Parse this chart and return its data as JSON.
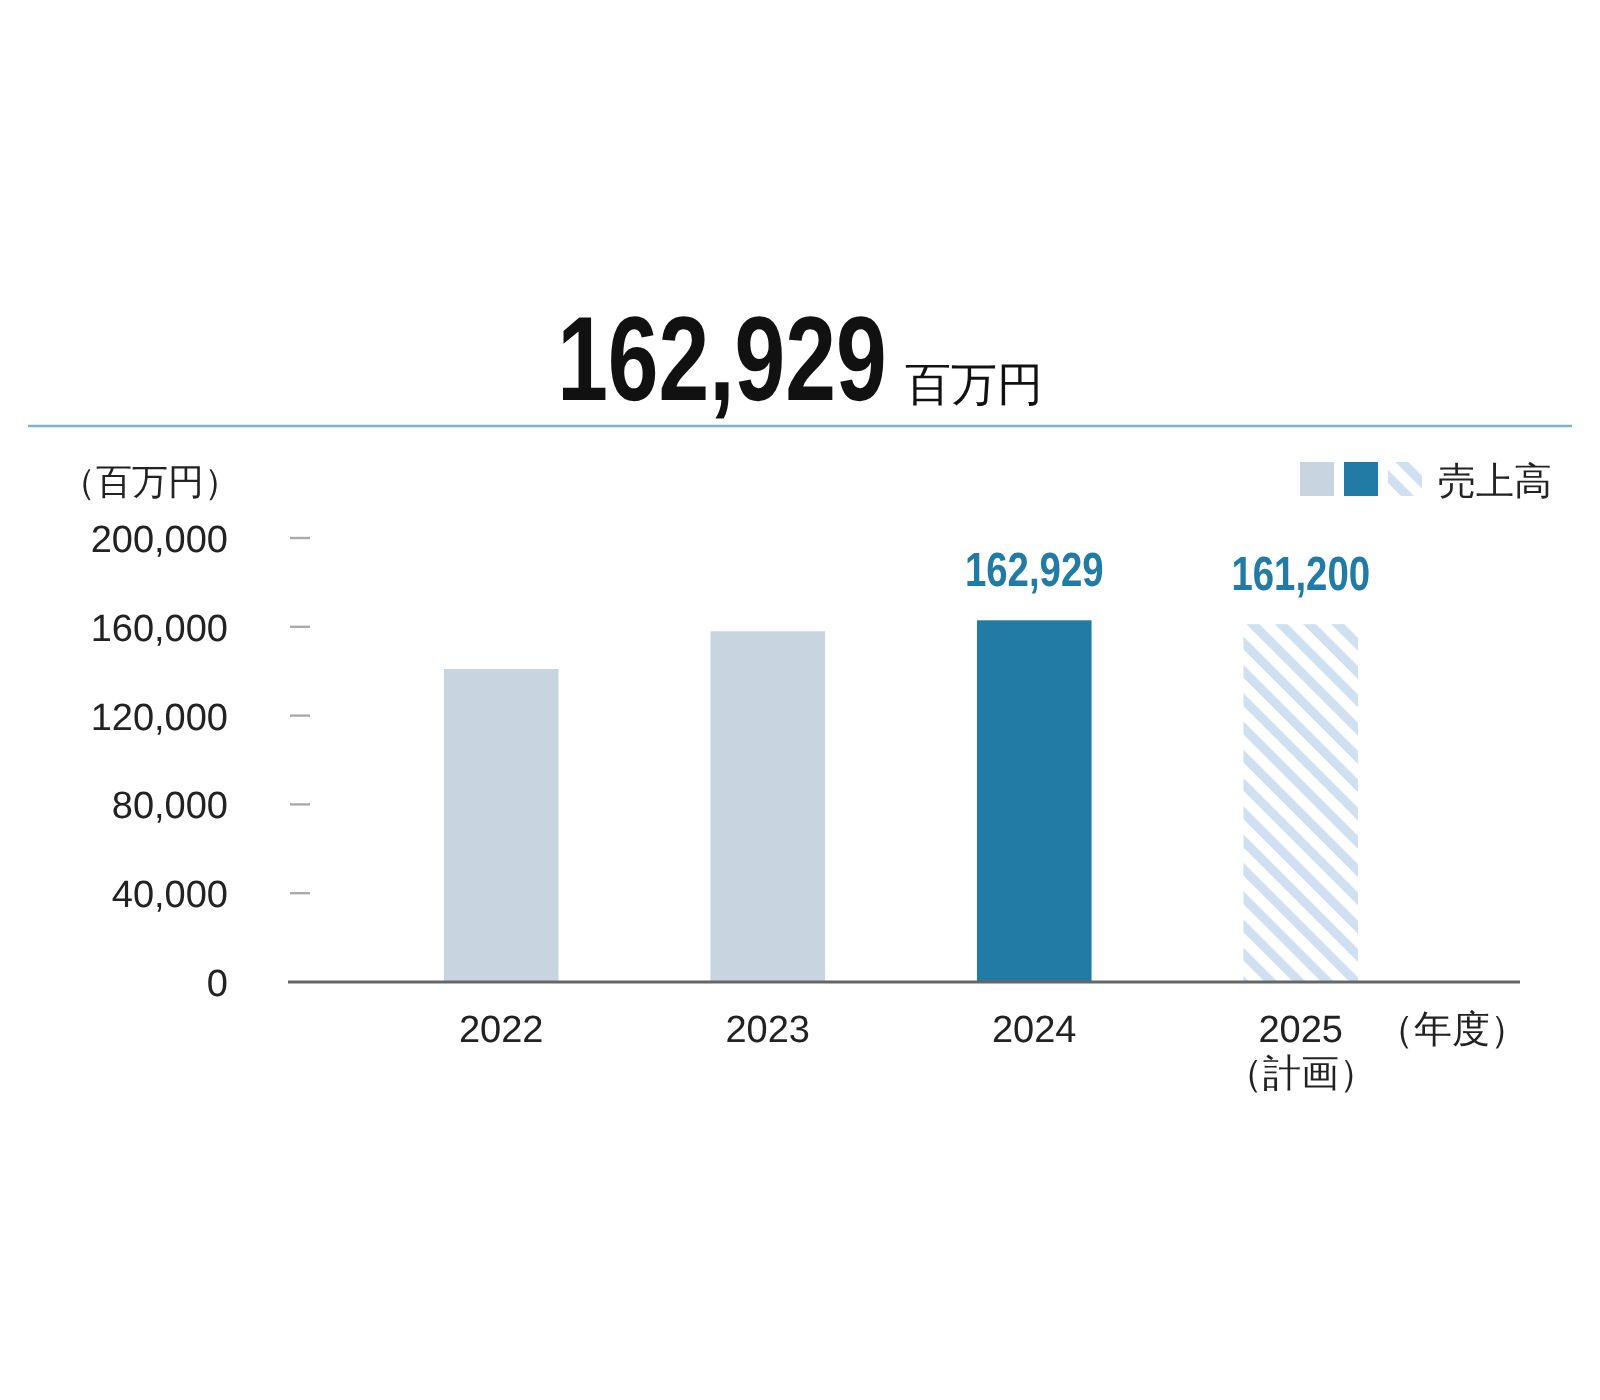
{
  "chart_data": {
    "type": "bar",
    "title": "162,929",
    "subtitle": "百万円",
    "ylabel": "（百万円）",
    "xlabel": "（年度）",
    "categories": [
      "2022",
      "2023",
      "2024",
      "2025\n（計画）"
    ],
    "series": [
      {
        "name": "売上高",
        "colors": [
          "#c8d5e1",
          "#c8d5e1",
          "#227ba4",
          "#c8d5e1"
        ],
        "values": [
          141000,
          158000,
          162929,
          null
        ],
        "value_labels": [
          null,
          null,
          "162,929",
          null
        ]
      },
      {
        "color": "#cfe1f0",
        "values": [
          null,
          null,
          null,
          161200
        ],
        "value_labels": [
          null,
          null,
          null,
          "161,200"
        ]
      }
    ],
    "ylim": [
      0,
      200000
    ],
    "yticks": [
      {
        "value": 0,
        "label": "0"
      },
      {
        "value": 40000,
        "label": "40,000"
      },
      {
        "value": 80000,
        "label": "80,000"
      },
      {
        "value": 120000,
        "label": "120,000"
      },
      {
        "value": 160000,
        "label": "160,000"
      },
      {
        "value": 200000,
        "label": "200,000"
      }
    ],
    "legend": "top right",
    "grid": false
  }
}
